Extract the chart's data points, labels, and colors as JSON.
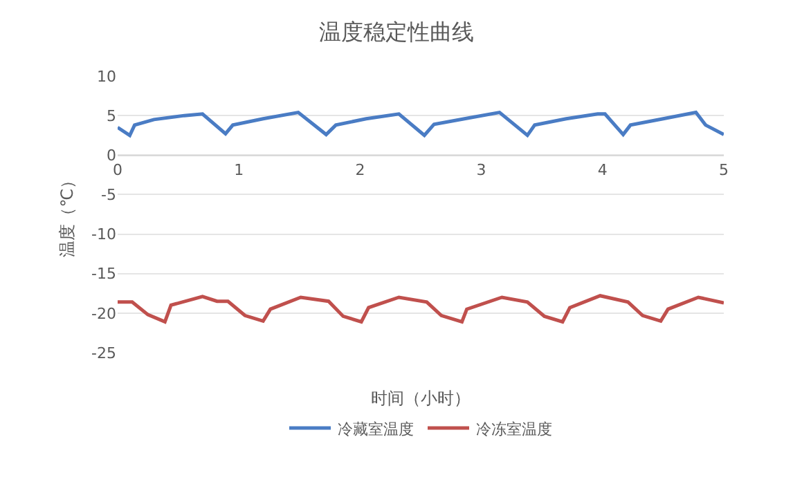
{
  "chart_data": {
    "type": "line",
    "title": "温度稳定性曲线",
    "xlabel": "时间（小时）",
    "ylabel": "温度（℃）",
    "xlim": [
      0,
      5
    ],
    "xticks": [
      0,
      1,
      2,
      3,
      4,
      5
    ],
    "ylim": [
      -25,
      10
    ],
    "yticks": [
      -25,
      -20,
      -15,
      -10,
      -5,
      0,
      5,
      10
    ],
    "grid": "y",
    "legend": "bottom",
    "line_style": "solid",
    "marker": "none",
    "series": [
      {
        "name": "冷藏室温度",
        "color": "#4a7cc4",
        "x": [
          0,
          0.1,
          0.14,
          0.3,
          0.55,
          0.7,
          0.89,
          0.95,
          1.2,
          1.49,
          1.72,
          1.8,
          2.05,
          2.32,
          2.53,
          2.61,
          2.9,
          3.15,
          3.38,
          3.44,
          3.7,
          3.96,
          4.02,
          4.17,
          4.23,
          4.5,
          4.77,
          4.85,
          5
        ],
        "values": [
          3.5,
          2.5,
          3.8,
          4.5,
          5.0,
          5.2,
          2.7,
          3.8,
          4.6,
          5.4,
          2.6,
          3.8,
          4.6,
          5.2,
          2.5,
          3.9,
          4.7,
          5.4,
          2.5,
          3.8,
          4.6,
          5.2,
          5.2,
          2.6,
          3.8,
          4.6,
          5.4,
          3.8,
          2.6
        ]
      },
      {
        "name": "冷冻室温度",
        "color": "#c0504d",
        "x": [
          0,
          0.12,
          0.25,
          0.39,
          0.44,
          0.7,
          0.82,
          0.91,
          1.05,
          1.2,
          1.26,
          1.51,
          1.74,
          1.86,
          2.01,
          2.07,
          2.32,
          2.55,
          2.67,
          2.84,
          2.88,
          3.17,
          3.38,
          3.52,
          3.67,
          3.73,
          3.98,
          4.21,
          4.33,
          4.48,
          4.54,
          4.79,
          5
        ],
        "values": [
          -18.6,
          -18.6,
          -20.2,
          -21.1,
          -19.0,
          -17.9,
          -18.5,
          -18.5,
          -20.3,
          -21.0,
          -19.5,
          -18.0,
          -18.5,
          -20.4,
          -21.1,
          -19.3,
          -18.0,
          -18.6,
          -20.3,
          -21.1,
          -19.5,
          -18.0,
          -18.6,
          -20.4,
          -21.1,
          -19.3,
          -17.8,
          -18.6,
          -20.3,
          -21.0,
          -19.5,
          -18.0,
          -18.7
        ]
      }
    ]
  }
}
